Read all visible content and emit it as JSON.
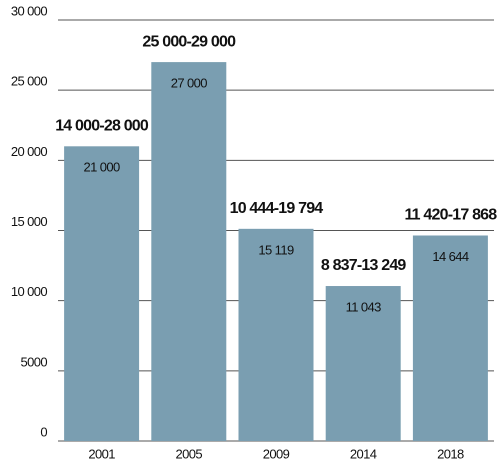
{
  "chart_data": {
    "type": "bar",
    "categories": [
      "2001",
      "2005",
      "2009",
      "2014",
      "2018"
    ],
    "values": [
      21000,
      27000,
      15119,
      11043,
      14644
    ],
    "value_labels": [
      "21 000",
      "27 000",
      "15 119",
      "11 043",
      "14 644"
    ],
    "annotations": [
      "14 000-28 000",
      "25 000-29 000",
      "10 444-19 794",
      "8 837-13 249",
      "11 420-17 868"
    ],
    "color": "#7a9eb1",
    "ylim": [
      0,
      30000
    ],
    "yticks": [
      0,
      5000,
      {
        "value": 10000,
        "label": "10 000"
      },
      {
        "value": 15000,
        "label": "15 000"
      },
      {
        "value": 20000,
        "label": "20 000"
      },
      {
        "value": 25000,
        "label": "25 000"
      },
      {
        "value": 30000,
        "label": "30 000"
      }
    ],
    "grid": true
  }
}
